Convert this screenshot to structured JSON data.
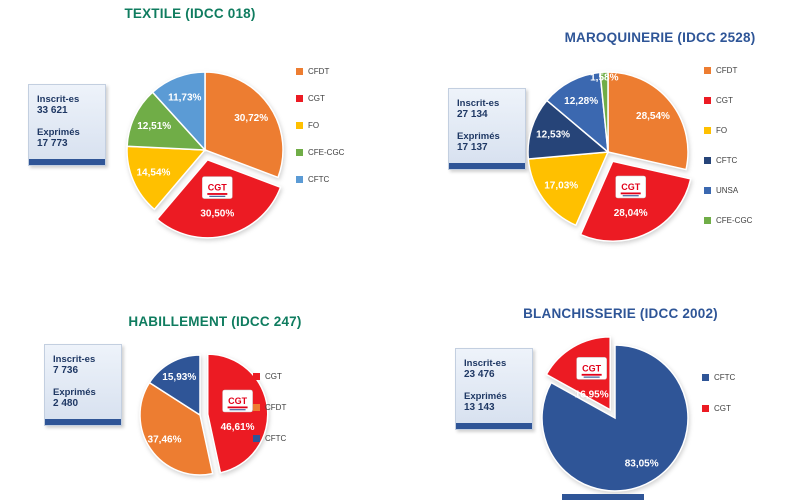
{
  "cgt_logo_text": "CGT",
  "colors": {
    "statbox_accent": "#2F5597",
    "background": "#FFFFFF"
  },
  "chart_data": [
    {
      "type": "pie",
      "title": "TEXTILE (IDCC 018)",
      "title_color": "#0F7C5F",
      "legend_position": "right",
      "stats": {
        "inscrits_label": "Inscrit-es",
        "inscrits_value": "33 621",
        "exprimes_label": "Exprimés",
        "exprimes_value": "17 773"
      },
      "slices": [
        {
          "name": "CFDT",
          "pct": 30.72,
          "label": "30,72%",
          "color": "#ED7D31",
          "exploded": false,
          "logo": false
        },
        {
          "name": "CGT",
          "pct": 30.5,
          "label": "30,50%",
          "color": "#EC1B23",
          "exploded": true,
          "logo": true
        },
        {
          "name": "FO",
          "pct": 14.54,
          "label": "14,54%",
          "color": "#FFC000",
          "exploded": false,
          "logo": false
        },
        {
          "name": "CFE-CGC",
          "pct": 12.51,
          "label": "12,51%",
          "color": "#70AD47",
          "exploded": false,
          "logo": false
        },
        {
          "name": "CFTC",
          "pct": 11.73,
          "label": "11,73%",
          "color": "#5B9BD5",
          "exploded": false,
          "logo": false
        }
      ]
    },
    {
      "type": "pie",
      "title": "MAROQUINERIE (IDCC 2528)",
      "title_color": "#2E5597",
      "legend_position": "right",
      "stats": {
        "inscrits_label": "Inscrit-es",
        "inscrits_value": "27 134",
        "exprimes_label": "Exprimés",
        "exprimes_value": "17 137"
      },
      "slices": [
        {
          "name": "CFDT",
          "pct": 28.54,
          "label": "28,54%",
          "color": "#ED7D31",
          "exploded": false,
          "logo": false
        },
        {
          "name": "CGT",
          "pct": 28.04,
          "label": "28,04%",
          "color": "#EC1B23",
          "exploded": true,
          "logo": true
        },
        {
          "name": "FO",
          "pct": 17.03,
          "label": "17,03%",
          "color": "#FFC000",
          "exploded": false,
          "logo": false
        },
        {
          "name": "CFTC",
          "pct": 12.53,
          "label": "12,53%",
          "color": "#264478",
          "exploded": false,
          "logo": false
        },
        {
          "name": "UNSA",
          "pct": 12.28,
          "label": "12,28%",
          "color": "#3B68B0",
          "exploded": false,
          "logo": false
        },
        {
          "name": "CFE-CGC",
          "pct": 1.58,
          "label": "1,58%",
          "color": "#70AD47",
          "exploded": false,
          "logo": false
        }
      ]
    },
    {
      "type": "pie",
      "title": "HABILLEMENT (IDCC 247)",
      "title_color": "#0F7C5F",
      "legend_position": "right",
      "stats": {
        "inscrits_label": "Inscrit-es",
        "inscrits_value": "7 736",
        "exprimes_label": "Exprimés",
        "exprimes_value": "2 480"
      },
      "slices": [
        {
          "name": "CGT",
          "pct": 46.61,
          "label": "46,61%",
          "color": "#EC1B23",
          "exploded": true,
          "logo": true
        },
        {
          "name": "CFDT",
          "pct": 37.46,
          "label": "37,46%",
          "color": "#ED7D31",
          "exploded": false,
          "logo": false
        },
        {
          "name": "CFTC",
          "pct": 15.93,
          "label": "15,93%",
          "color": "#2F5597",
          "exploded": false,
          "logo": false
        }
      ]
    },
    {
      "type": "pie",
      "title": "BLANCHISSERIE (IDCC 2002)",
      "title_color": "#2E5597",
      "legend_position": "right",
      "stats": {
        "inscrits_label": "Inscrit-es",
        "inscrits_value": "23 476",
        "exprimes_label": "Exprimés",
        "exprimes_value": "13 143"
      },
      "slices": [
        {
          "name": "CFTC",
          "pct": 83.05,
          "label": "83,05%",
          "color": "#2F5597",
          "exploded": false,
          "logo": false
        },
        {
          "name": "CGT",
          "pct": 16.95,
          "label": "16,95%",
          "color": "#EC1B23",
          "exploded": true,
          "logo": true
        }
      ]
    }
  ]
}
